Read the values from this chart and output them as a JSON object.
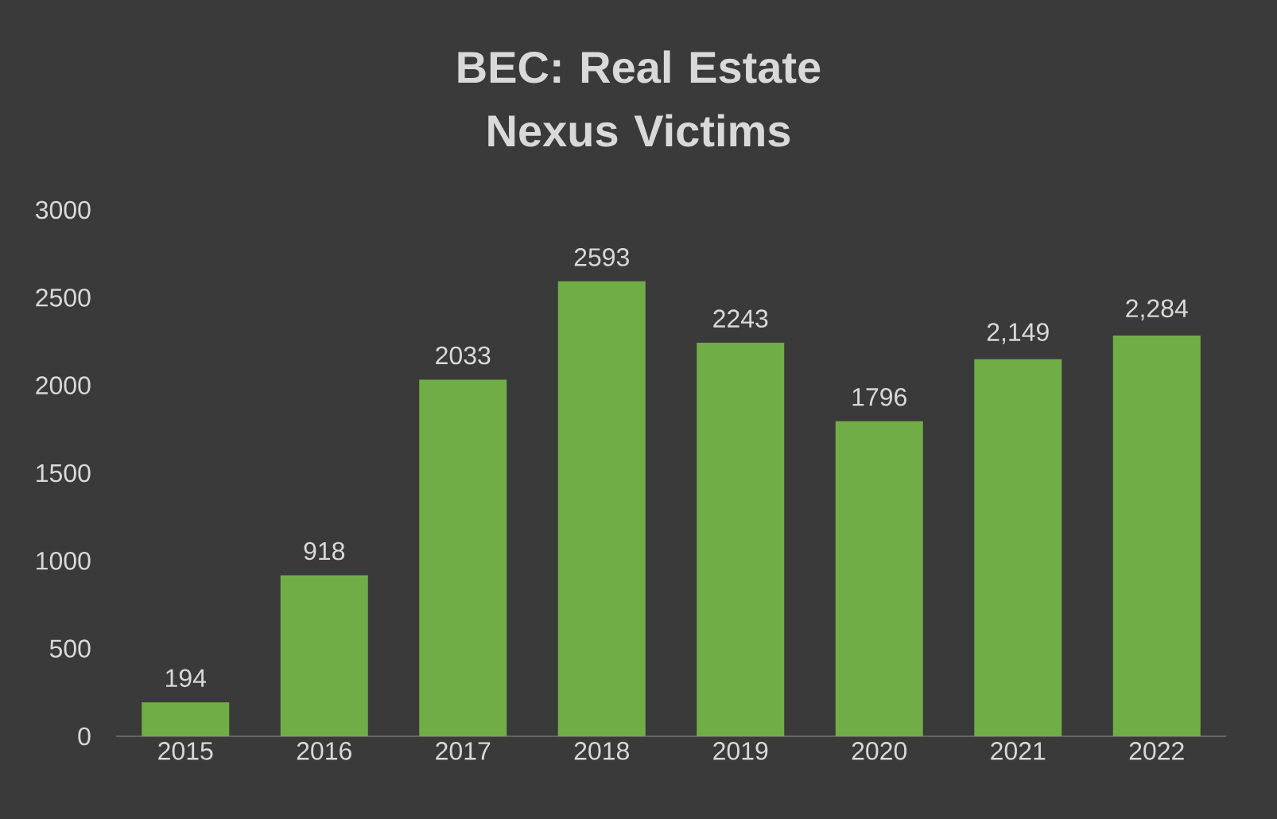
{
  "chart_data": {
    "type": "bar",
    "title": "BEC: Real Estate Nexus Victims",
    "categories": [
      "2015",
      "2016",
      "2017",
      "2018",
      "2019",
      "2020",
      "2021",
      "2022"
    ],
    "values": [
      194,
      918,
      2033,
      2593,
      2243,
      1796,
      2149,
      2284
    ],
    "value_labels": [
      "194",
      "918",
      "2033",
      "2593",
      "2243",
      "1796",
      "2,149",
      "2,284"
    ],
    "color": "#70ad47",
    "ylim": [
      0,
      3000
    ],
    "yticks": [
      0,
      500,
      1000,
      1500,
      2000,
      2500,
      3000
    ]
  }
}
